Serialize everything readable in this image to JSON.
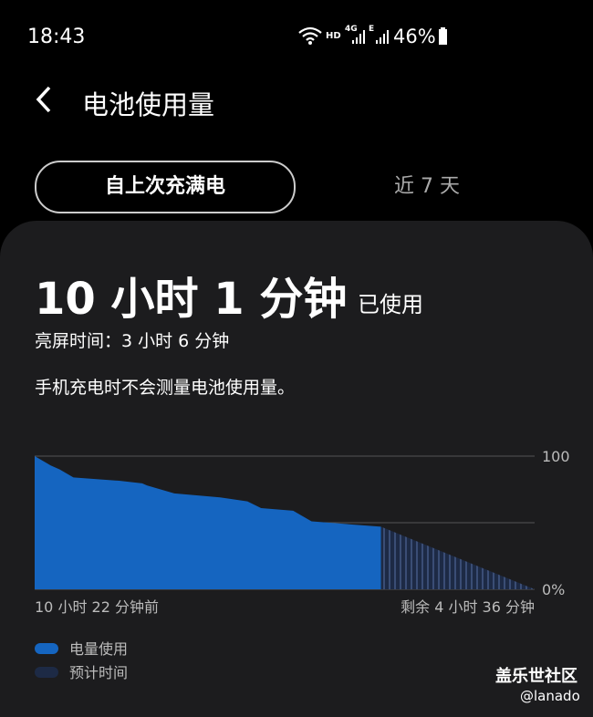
{
  "status_bar": {
    "time": "18:43",
    "hd": "HD",
    "net": "4G",
    "net2": "E",
    "battery": "46%"
  },
  "header": {
    "title": "电池使用量"
  },
  "tabs": [
    "自上次充满电",
    "近 7 天"
  ],
  "summary": {
    "usage": "10 小时 1 分钟",
    "usage_suffix": "已使用",
    "screen_time": "亮屏时间：3 小时 6 分钟",
    "note": "手机充电时不会测量电池使用量。"
  },
  "chart_data": {
    "type": "area",
    "x_start_label": "10 小时 22 分钟前",
    "x_end_label": "剩余 4 小时 36 分钟",
    "xlim": [
      -10.37,
      4.6
    ],
    "ylim": [
      0,
      100
    ],
    "yticks": [
      100,
      {
        "value": 0,
        "label": "0%"
      }
    ],
    "grid_lines": [
      100,
      50,
      0
    ],
    "series": [
      {
        "name": "电量使用",
        "color": "#1565c0",
        "x": [
          -10.37,
          -9.89,
          -9.62,
          -9.21,
          -7.84,
          -7.15,
          -7.01,
          -6.19,
          -4.82,
          -4.0,
          -3.59,
          -2.63,
          -2.08,
          0
        ],
        "values": [
          100,
          93,
          90,
          84,
          81.5,
          79.5,
          78,
          72,
          69,
          66,
          61,
          59,
          51,
          47
        ]
      },
      {
        "name": "预计时间",
        "color": "#1d2a45",
        "pattern": "stripes",
        "x": [
          0,
          4.6
        ],
        "values": [
          47,
          0
        ]
      }
    ]
  },
  "watermark": {
    "brand": "盖乐世社区",
    "user": "@lanado"
  }
}
